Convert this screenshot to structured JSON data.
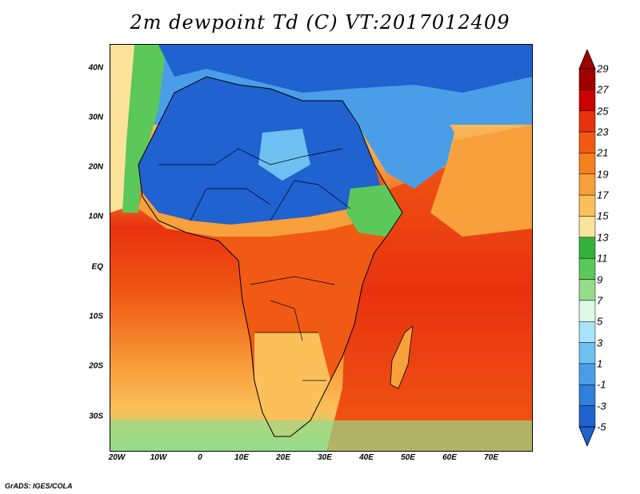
{
  "title": "2m dewpoint Td (C) VT:2017012409",
  "credit": "GrADS: IGES/COLA",
  "map": {
    "lat_ticks": [
      "40N",
      "30N",
      "20N",
      "10N",
      "EQ",
      "10S",
      "20S",
      "30S"
    ],
    "lon_ticks": [
      "20W",
      "10W",
      "0",
      "10E",
      "20E",
      "30E",
      "40E",
      "50E",
      "60E",
      "70E"
    ]
  },
  "colorbar": {
    "labels": [
      "29",
      "27",
      "25",
      "23",
      "21",
      "19",
      "17",
      "15",
      "13",
      "11",
      "9",
      "7",
      "5",
      "3",
      "1",
      "-1",
      "-3",
      "-5"
    ],
    "colors": [
      "#a00000",
      "#cc0000",
      "#e8320f",
      "#f05a14",
      "#f5801e",
      "#f7a03c",
      "#fbc05a",
      "#fde39a",
      "#35b23c",
      "#5cc85a",
      "#96dc8a",
      "#ddf8e6",
      "#a8e4fb",
      "#6fbff2",
      "#4a9ee8",
      "#2f7fdc",
      "#1f62d0"
    ]
  }
}
